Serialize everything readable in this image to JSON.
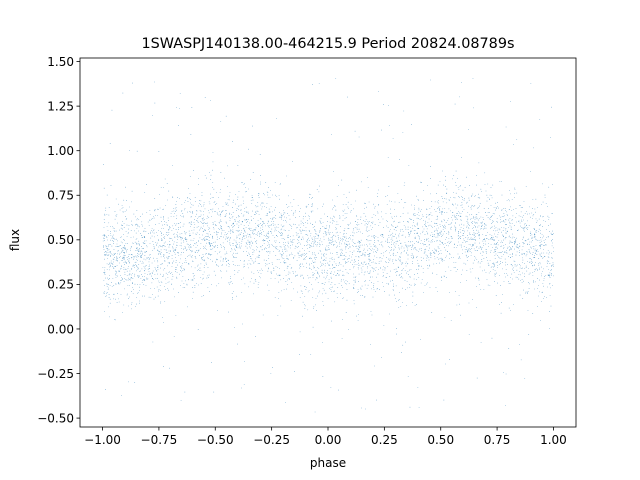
{
  "chart_data": {
    "type": "scatter",
    "title": "1SWASPJ140138.00-464215.9 Period 20824.08789s",
    "xlabel": "phase",
    "ylabel": "flux",
    "xlim": [
      -1.1,
      1.1
    ],
    "ylim": [
      -0.55,
      1.52
    ],
    "xticks": [
      -1.0,
      -0.75,
      -0.5,
      -0.25,
      0.0,
      0.25,
      0.5,
      0.75,
      1.0
    ],
    "xtick_labels": [
      "−1.00",
      "−0.75",
      "−0.50",
      "−0.25",
      "0.00",
      "0.25",
      "0.50",
      "0.75",
      "1.00"
    ],
    "yticks": [
      -0.5,
      -0.25,
      0.0,
      0.25,
      0.5,
      0.75,
      1.0,
      1.25,
      1.5
    ],
    "ytick_labels": [
      "−0.50",
      "−0.25",
      "0.00",
      "0.25",
      "0.50",
      "0.75",
      "1.00",
      "1.25",
      "1.50"
    ],
    "grid": false,
    "marker_color": "#1f77b4",
    "series": [
      {
        "phase_range": [
          -1.0,
          1.0
        ],
        "trend_x": [
          -1.0,
          -0.875,
          -0.75,
          -0.625,
          -0.5,
          -0.375,
          -0.25,
          -0.125,
          0.0,
          0.125,
          0.25,
          0.375,
          0.5,
          0.625,
          0.75,
          0.875,
          1.0
        ],
        "trend_y": [
          0.4,
          0.42,
          0.44,
          0.5,
          0.53,
          0.54,
          0.5,
          0.46,
          0.42,
          0.44,
          0.46,
          0.5,
          0.53,
          0.54,
          0.5,
          0.45,
          0.42
        ],
        "core_spread": 0.14,
        "outlier_range": [
          -0.47,
          1.43
        ],
        "n_points": 60000,
        "outlier_fraction": 0.04
      }
    ]
  }
}
